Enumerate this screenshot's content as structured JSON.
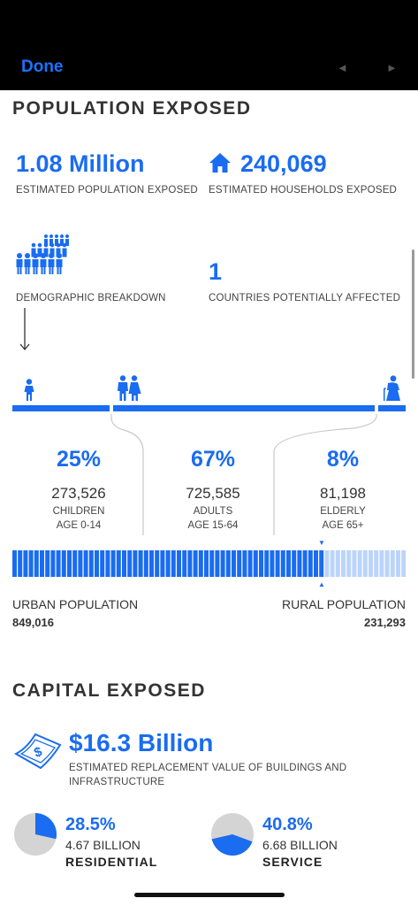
{
  "nav": {
    "done_label": "Done",
    "prev_glyph": "◄",
    "next_glyph": "►"
  },
  "population": {
    "title": "POPULATION EXPOSED",
    "estimated_population": {
      "value": "1.08 Million",
      "label": "ESTIMATED POPULATION EXPOSED"
    },
    "estimated_households": {
      "value": "240,069",
      "label": "ESTIMATED HOUSEHOLDS EXPOSED",
      "icon": "house-icon"
    },
    "demographic_label": "DEMOGRAPHIC BREAKDOWN",
    "countries": {
      "value": "1",
      "label": "COUNTRIES POTENTIALLY AFFECTED"
    },
    "groups": [
      {
        "pct": "25%",
        "count": "273,526",
        "name": "CHILDREN",
        "age": "AGE 0-14",
        "icon": "child-icon"
      },
      {
        "pct": "67%",
        "count": "725,585",
        "name": "ADULTS",
        "age": "AGE 15-64",
        "icon": "adults-icon"
      },
      {
        "pct": "8%",
        "count": "81,198",
        "name": "ELDERLY",
        "age": "AGE 65+",
        "icon": "elderly-icon"
      }
    ],
    "urban": {
      "label": "URBAN POPULATION",
      "value": "849,016",
      "share": 0.786
    },
    "rural": {
      "label": "RURAL POPULATION",
      "value": "231,293"
    }
  },
  "capital": {
    "title": "CAPITAL EXPOSED",
    "replacement": {
      "value": "$16.3 Billion",
      "label": "ESTIMATED REPLACEMENT VALUE OF BUILDINGS AND INFRASTRUCTURE",
      "icon": "cash-icon"
    },
    "categories": [
      {
        "pct": "28.5%",
        "value": "4.67 BILLION",
        "name": "RESIDENTIAL",
        "share": 0.285
      },
      {
        "pct": "40.8%",
        "value": "6.68 BILLION",
        "name": "SERVICE",
        "share": 0.408
      }
    ]
  },
  "colors": {
    "accent": "#1a6cf0",
    "bar_light": "#bcd4fb",
    "pie_grey": "#d4d4d4"
  }
}
